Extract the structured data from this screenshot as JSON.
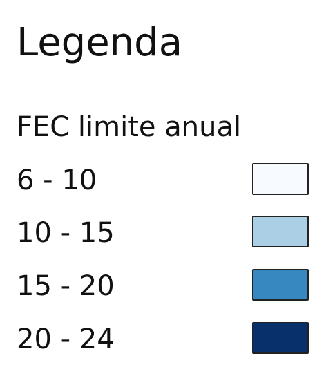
{
  "legend": {
    "title": "Legenda",
    "subtitle": "FEC limite anual",
    "items": [
      {
        "label": "6 - 10",
        "color": "#f7fbff"
      },
      {
        "label": "10 - 15",
        "color": "#abd0e6"
      },
      {
        "label": "15 - 20",
        "color": "#3787c0"
      },
      {
        "label": "20 - 24",
        "color": "#08306b"
      }
    ]
  }
}
